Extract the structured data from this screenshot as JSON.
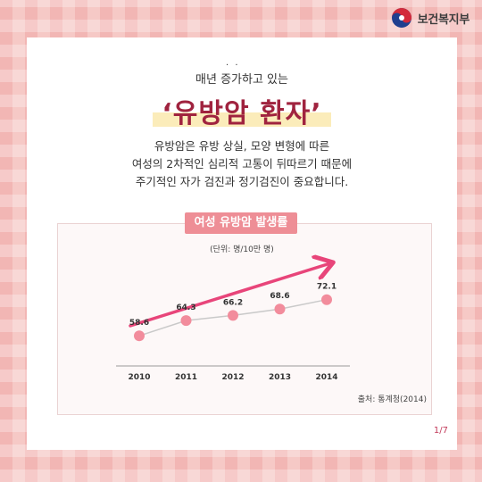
{
  "brand": {
    "logo_text": "보건복지부"
  },
  "intro_text": "매년 증가하고 있는",
  "intro_dots": "· ·",
  "title": "‘유방암 환자’",
  "description": [
    "유방암은 유방 상실, 모양 변형에 따른",
    "여성의 2차적인 심리적 고통이 뒤따르기 때문에",
    "주기적인 자가 검진과 정기검진이 중요합니다."
  ],
  "chart_data": {
    "type": "line",
    "title": "여성 유방암 발생률",
    "unit": "(단위: 명/10만 명)",
    "x": [
      "2010",
      "2011",
      "2012",
      "2013",
      "2014"
    ],
    "series": [
      {
        "values": [
          58.6,
          64.3,
          66.2,
          68.6,
          72.1
        ]
      }
    ],
    "data_labels": [
      "58.6",
      "64.3",
      "66.2",
      "68.6",
      "72.1"
    ],
    "trend_arrow": true,
    "grid": false,
    "colors": {
      "line": "#c9c9c9",
      "point": "#f28c9c",
      "arrow": "#e8457a"
    }
  },
  "source": "출처: 통계청(2014)",
  "page_number": "1/7",
  "colors": {
    "title": "#a0233f",
    "highlight": "#fbecba",
    "badge": "#ee8e96"
  }
}
